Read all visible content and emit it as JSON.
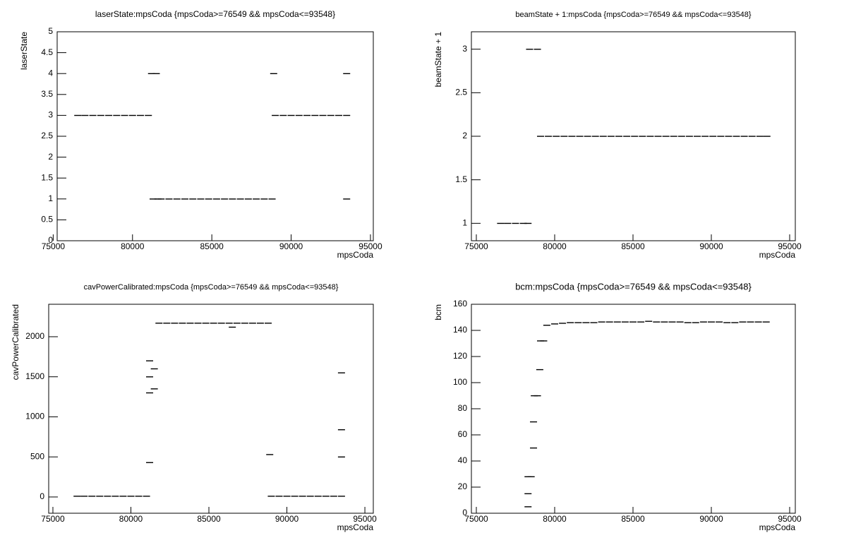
{
  "chart_data": [
    {
      "type": "scatter",
      "title": "laserState:mpsCoda {mpsCoda>=76549 && mpsCoda<=93548}",
      "x_label": "mpsCoda",
      "y_label": "laserState",
      "color": "#000000",
      "xlim": [
        75250,
        95180
      ],
      "xticks": [
        75000,
        80000,
        85000,
        90000,
        95000
      ],
      "ylim": [
        0,
        5
      ],
      "yticks": [
        0,
        0.5,
        1,
        1.5,
        2,
        2.5,
        3,
        3.5,
        4,
        4.5,
        5
      ],
      "x": [
        76549,
        77000,
        77500,
        78000,
        78500,
        79000,
        79500,
        80000,
        80500,
        81000,
        81200,
        81500,
        81300,
        81600,
        81800,
        82300,
        82800,
        83300,
        83800,
        84300,
        84800,
        85300,
        85800,
        86300,
        86800,
        87300,
        87800,
        88300,
        88800,
        89000,
        89500,
        90000,
        90500,
        91000,
        91500,
        92000,
        92500,
        93000,
        93500,
        88900,
        93500,
        93500
      ],
      "y": [
        3,
        3,
        3,
        3,
        3,
        3,
        3,
        3,
        3,
        3,
        4,
        4,
        1,
        1,
        1,
        1,
        1,
        1,
        1,
        1,
        1,
        1,
        1,
        1,
        1,
        1,
        1,
        1,
        1,
        3,
        3,
        3,
        3,
        3,
        3,
        3,
        3,
        3,
        3,
        4,
        4,
        1
      ]
    },
    {
      "type": "scatter",
      "title": "beamState + 1:mpsCoda {mpsCoda>=76549 && mpsCoda<=93548}",
      "x_label": "mpsCoda",
      "y_label": "beamState + 1",
      "color": "#000000",
      "xlim": [
        74685,
        95360
      ],
      "xticks": [
        75000,
        80000,
        85000,
        90000,
        95000
      ],
      "ylim": [
        0.8,
        3.2
      ],
      "yticks": [
        1,
        1.5,
        2,
        2.5,
        3
      ],
      "x": [
        76549,
        77000,
        77500,
        78000,
        78300,
        78400,
        78900,
        79100,
        79600,
        80100,
        80600,
        81100,
        81600,
        82100,
        82600,
        83100,
        83600,
        84100,
        84600,
        85100,
        85600,
        86100,
        86600,
        87100,
        87600,
        88100,
        88600,
        89100,
        89600,
        90100,
        90600,
        91100,
        91600,
        92100,
        92600,
        93100,
        93548
      ],
      "y": [
        1,
        1,
        1,
        1,
        1,
        3,
        3,
        2,
        2,
        2,
        2,
        2,
        2,
        2,
        2,
        2,
        2,
        2,
        2,
        2,
        2,
        2,
        2,
        2,
        2,
        2,
        2,
        2,
        2,
        2,
        2,
        2,
        2,
        2,
        2,
        2,
        2
      ]
    },
    {
      "type": "scatter",
      "title": "cavPowerCalibrated:mpsCoda {mpsCoda>=76549 && mpsCoda<=93548}",
      "x_label": "mpsCoda",
      "y_label": "cavPowerCalibrated",
      "color": "#000000",
      "xlim": [
        74730,
        95540
      ],
      "xticks": [
        75000,
        80000,
        85000,
        90000,
        95000
      ],
      "ylim": [
        -203,
        2405
      ],
      "yticks": [
        0,
        500,
        1000,
        1500,
        2000
      ],
      "x": [
        76549,
        77000,
        77500,
        78000,
        78500,
        79000,
        79500,
        80000,
        80500,
        81000,
        81200,
        81200,
        81200,
        81200,
        81500,
        81500,
        81800,
        82300,
        82800,
        83300,
        83800,
        84300,
        84800,
        85300,
        85800,
        86300,
        86800,
        87300,
        87800,
        88300,
        88800,
        86500,
        88900,
        89000,
        89500,
        90000,
        90500,
        91000,
        91500,
        92000,
        92500,
        93000,
        93500,
        93500,
        93500,
        93500
      ],
      "y": [
        10,
        10,
        10,
        10,
        10,
        10,
        10,
        10,
        10,
        10,
        1700,
        1500,
        1300,
        430,
        1350,
        1600,
        2170,
        2170,
        2170,
        2170,
        2170,
        2170,
        2170,
        2170,
        2170,
        2170,
        2170,
        2170,
        2170,
        2170,
        2170,
        2120,
        530,
        10,
        10,
        10,
        10,
        10,
        10,
        10,
        10,
        10,
        10,
        1550,
        840,
        500
      ]
    },
    {
      "type": "scatter",
      "title": "bcm:mpsCoda {mpsCoda>=76549 && mpsCoda<=93548}",
      "x_label": "mpsCoda",
      "y_label": "bcm",
      "color": "#000000",
      "xlim": [
        74685,
        95360
      ],
      "xticks": [
        75000,
        80000,
        85000,
        90000,
        95000
      ],
      "ylim": [
        0,
        160
      ],
      "yticks": [
        0,
        20,
        40,
        60,
        80,
        100,
        120,
        140,
        160
      ],
      "x": [
        78300,
        78300,
        78300,
        78500,
        78650,
        78650,
        78700,
        78900,
        79050,
        79100,
        79300,
        79500,
        80000,
        80500,
        81000,
        81500,
        82000,
        82500,
        83000,
        83500,
        84000,
        84500,
        85000,
        85500,
        86000,
        86500,
        87000,
        87500,
        88000,
        88500,
        89000,
        89500,
        90000,
        90500,
        91000,
        91500,
        92000,
        92500,
        93000,
        93500
      ],
      "y": [
        5,
        15,
        28,
        28,
        50,
        70,
        90,
        90,
        110,
        132,
        132,
        144,
        145,
        145.5,
        146,
        146,
        146,
        146,
        146.5,
        146.5,
        146.5,
        146.5,
        146.5,
        146.5,
        147,
        146.5,
        146.5,
        146.5,
        146.5,
        146,
        146,
        146.5,
        146.5,
        146.5,
        146,
        146,
        146.5,
        146.5,
        146.5,
        146.5
      ]
    }
  ]
}
